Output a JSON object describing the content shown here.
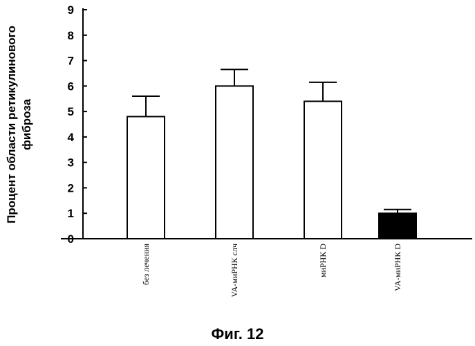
{
  "chart_data": {
    "type": "bar",
    "categories": [
      "без лечения",
      "VA-миРНК слч",
      "миРНК D",
      "VA-миРНК D"
    ],
    "values": [
      4.8,
      6.0,
      5.4,
      1.0
    ],
    "errors": [
      0.8,
      0.65,
      0.75,
      0.15
    ],
    "bar_fills": [
      "#ffffff",
      "#ffffff",
      "#ffffff",
      "#000000"
    ],
    "ylabel": [
      "Процент области ретикулинового",
      "фиброза"
    ],
    "ylim": [
      0,
      9
    ],
    "yticks": [
      0,
      1,
      2,
      3,
      4,
      5,
      6,
      7,
      8,
      9
    ],
    "grid": false,
    "caption": "Фиг. 12"
  }
}
